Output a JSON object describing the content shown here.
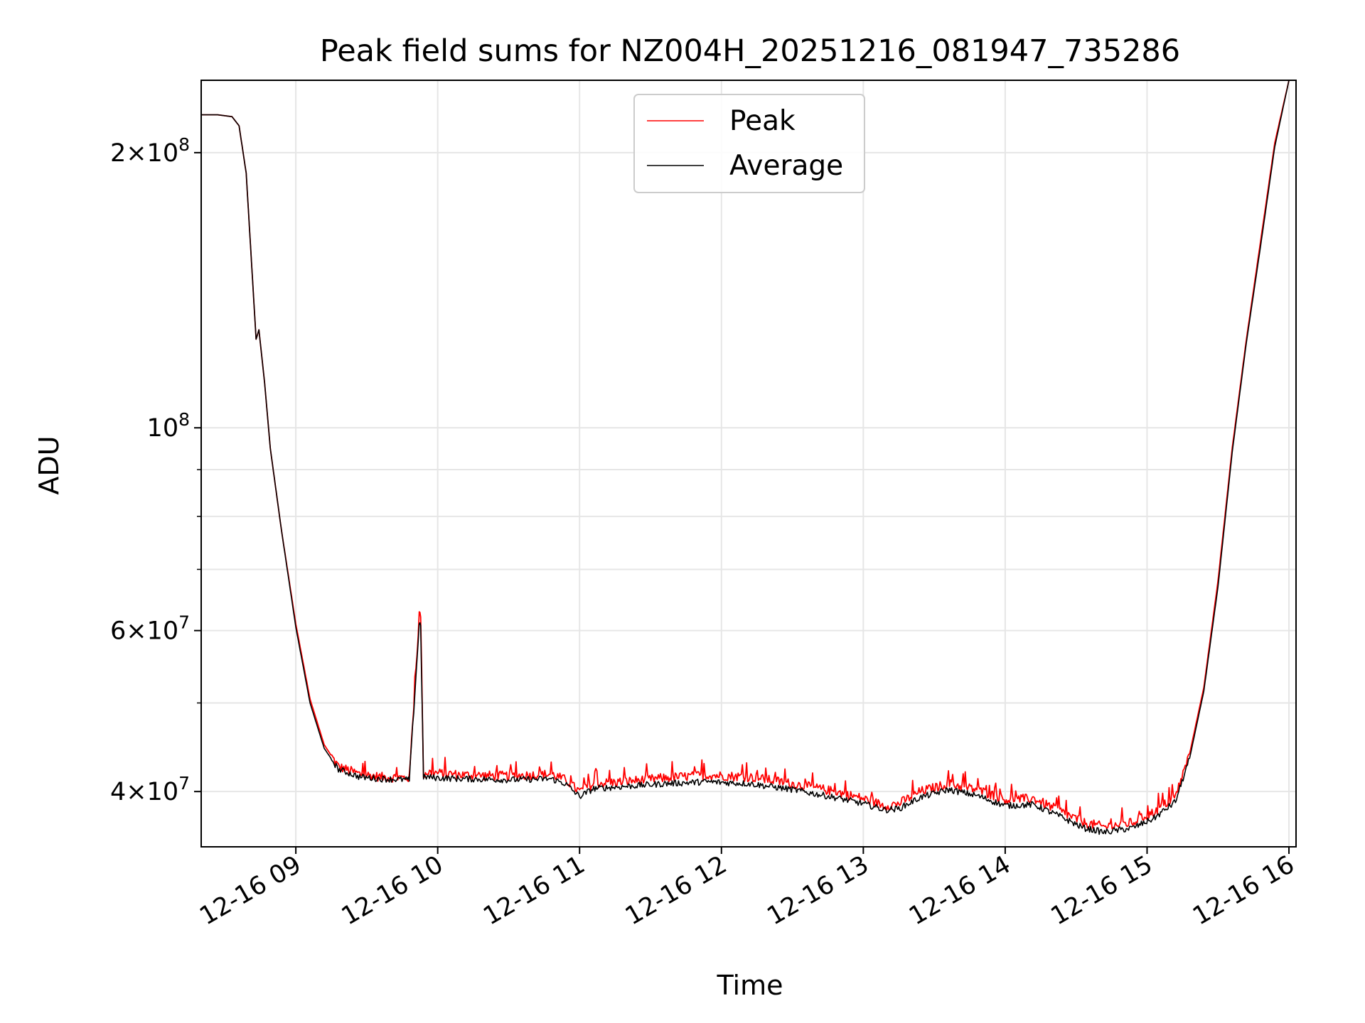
{
  "chart_data": {
    "type": "line",
    "title": "Peak field sums for NZ004H_20251216_081947_735286",
    "xlabel": "Time",
    "ylabel": "ADU",
    "yscale": "log",
    "grid": true,
    "legend_position": "top-center",
    "xlim_hours": [
      8.333,
      16.05
    ],
    "ylim": [
      34800000,
      240000000
    ],
    "x_ticks": [
      {
        "value": 9,
        "label": "12-16 09"
      },
      {
        "value": 10,
        "label": "12-16 10"
      },
      {
        "value": 11,
        "label": "12-16 11"
      },
      {
        "value": 12,
        "label": "12-16 12"
      },
      {
        "value": 13,
        "label": "12-16 13"
      },
      {
        "value": 14,
        "label": "12-16 14"
      },
      {
        "value": 15,
        "label": "12-16 15"
      },
      {
        "value": 16,
        "label": "12-16 16"
      }
    ],
    "y_major_ticks": [
      {
        "value": 40000000,
        "mantissa": "4",
        "exp": "7"
      },
      {
        "value": 60000000,
        "mantissa": "6",
        "exp": "7"
      },
      {
        "value": 100000000,
        "mantissa": "",
        "exp": "8"
      },
      {
        "value": 200000000,
        "mantissa": "2",
        "exp": "8"
      }
    ],
    "y_minor_ticks": [
      50000000,
      70000000,
      80000000,
      90000000
    ],
    "series": [
      {
        "name": "Peak",
        "color": "#ff0000",
        "x_hours": [
          8.333,
          8.45,
          8.55,
          8.6,
          8.65,
          8.72,
          8.74,
          8.78,
          8.82,
          8.9,
          9.0,
          9.1,
          9.2,
          9.3,
          9.45,
          9.6,
          9.8,
          9.87,
          9.88,
          9.9,
          9.92,
          10.0,
          10.2,
          10.5,
          10.8,
          10.9,
          11.0,
          11.1,
          11.3,
          11.6,
          11.9,
          12.2,
          12.5,
          12.8,
          13.0,
          13.15,
          13.25,
          13.4,
          13.6,
          13.8,
          14.0,
          14.2,
          14.4,
          14.55,
          14.7,
          14.8,
          14.9,
          15.05,
          15.2,
          15.3,
          15.4,
          15.5,
          15.6,
          15.7,
          15.8,
          15.9,
          16.0
        ],
        "values": [
          220000000,
          220000000,
          219000000,
          214000000,
          190000000,
          125000000,
          128000000,
          112000000,
          95000000,
          77000000,
          61000000,
          50500000,
          45000000,
          42600000,
          41800000,
          41500000,
          41400000,
          62500000,
          62500000,
          41600000,
          42000000,
          41900000,
          41700000,
          41600000,
          41800000,
          41200000,
          40000000,
          40800000,
          41000000,
          41400000,
          41700000,
          41500000,
          40800000,
          40000000,
          39300000,
          38600000,
          38800000,
          40000000,
          40800000,
          40200000,
          39200000,
          39300000,
          38000000,
          37000000,
          36600000,
          36800000,
          37000000,
          38000000,
          39500000,
          44000000,
          52000000,
          68000000,
          95000000,
          125000000,
          160000000,
          205000000,
          240000000
        ]
      },
      {
        "name": "Average",
        "color": "#000000",
        "x_hours": [
          8.333,
          8.45,
          8.55,
          8.6,
          8.65,
          8.72,
          8.74,
          8.78,
          8.82,
          8.9,
          9.0,
          9.1,
          9.2,
          9.3,
          9.45,
          9.6,
          9.8,
          9.87,
          9.88,
          9.9,
          9.92,
          10.0,
          10.2,
          10.5,
          10.8,
          10.9,
          11.0,
          11.1,
          11.3,
          11.6,
          11.9,
          12.2,
          12.5,
          12.8,
          13.0,
          13.15,
          13.25,
          13.4,
          13.6,
          13.8,
          14.0,
          14.2,
          14.4,
          14.55,
          14.7,
          14.8,
          14.9,
          15.05,
          15.2,
          15.3,
          15.4,
          15.5,
          15.6,
          15.7,
          15.8,
          15.9,
          16.0
        ],
        "values": [
          220000000,
          220000000,
          219000000,
          214000000,
          190000000,
          125000000,
          128000000,
          112000000,
          95000000,
          77000000,
          60500000,
          50000000,
          44600000,
          42300000,
          41500000,
          41300000,
          41200000,
          61000000,
          61000000,
          41400000,
          41500000,
          41400000,
          41300000,
          41200000,
          41300000,
          40800000,
          39500000,
          40300000,
          40500000,
          40800000,
          41000000,
          40800000,
          40200000,
          39400000,
          38800000,
          38200000,
          38300000,
          39400000,
          40200000,
          39600000,
          38600000,
          38700000,
          37500000,
          36500000,
          36100000,
          36300000,
          36500000,
          37400000,
          39000000,
          43500000,
          51500000,
          67000000,
          94000000,
          124000000,
          158000000,
          203000000,
          240000000
        ]
      }
    ]
  }
}
